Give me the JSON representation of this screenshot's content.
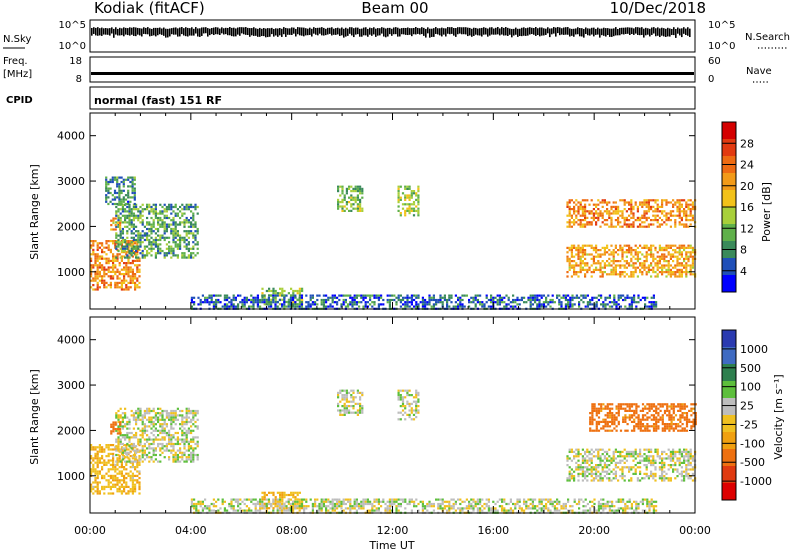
{
  "header": {
    "station": "Kodiak (fitACF)",
    "beam": "Beam 00",
    "date": "10/Dec/2018"
  },
  "noise_panel": {
    "left_label": "N.Sky",
    "right_label": "N.Search",
    "left_ticks": [
      "10^5",
      "10^0"
    ],
    "right_ticks": [
      "10^5",
      "10^0"
    ]
  },
  "freq_panel": {
    "left_label_1": "Freq.",
    "left_label_2": "[MHz]",
    "right_label": "Nave",
    "left_ticks": [
      "18",
      "8"
    ],
    "right_ticks": [
      "60",
      "0"
    ]
  },
  "cpid_panel": {
    "label": "CPID",
    "text": "normal (fast) 151 RF"
  },
  "colors": {
    "scale": [
      "#0000ff",
      "#1f4fb8",
      "#3a8a5a",
      "#5fb04a",
      "#a8cf3a",
      "#f2c21a",
      "#f29a18",
      "#ee6b12",
      "#e23a10",
      "#d40000"
    ],
    "velocity": [
      "#2a3ab0",
      "#3f6bc2",
      "#2e7f4e",
      "#5dbf3c",
      "#bdbdbd",
      "#f0c020",
      "#f0a010",
      "#ee7010",
      "#e03a10",
      "#dd0000"
    ]
  },
  "chart_data": [
    {
      "type": "heatmap",
      "title": "",
      "xlabel": "Time UT",
      "ylabel": "Slant Range [km]",
      "x_ticks": [
        "00:00",
        "04:00",
        "08:00",
        "12:00",
        "16:00",
        "20:00",
        "00:00"
      ],
      "y_ticks": [
        "1000",
        "2000",
        "3000",
        "4000"
      ],
      "y_range": [
        180,
        4500
      ],
      "colorbar_label": "Power [dB]",
      "colorbar_ticks": [
        "4",
        "8",
        "12",
        "16",
        "20",
        "24",
        "28"
      ],
      "colorbar_range": [
        0,
        32
      ],
      "echo_regions": [
        {
          "t_start": 0.0,
          "t_end": 2.0,
          "r_start": 600,
          "r_end": 1700,
          "power": 22
        },
        {
          "t_start": 1.0,
          "t_end": 4.3,
          "r_start": 1300,
          "r_end": 2500,
          "power": 10
        },
        {
          "t_start": 0.6,
          "t_end": 1.8,
          "r_start": 2500,
          "r_end": 3100,
          "power": 8
        },
        {
          "t_start": 0.8,
          "t_end": 1.2,
          "r_start": 1950,
          "r_end": 2200,
          "power": 20
        },
        {
          "t_start": 6.8,
          "t_end": 8.4,
          "r_start": 300,
          "r_end": 650,
          "power": 12
        },
        {
          "t_start": 9.8,
          "t_end": 10.8,
          "r_start": 2350,
          "r_end": 2900,
          "power": 12
        },
        {
          "t_start": 12.2,
          "t_end": 13.0,
          "r_start": 2250,
          "r_end": 2900,
          "power": 14
        },
        {
          "t_start": 4.0,
          "t_end": 22.5,
          "r_start": 180,
          "r_end": 500,
          "power": 6
        },
        {
          "t_start": 18.9,
          "t_end": 24.0,
          "r_start": 2000,
          "r_end": 2600,
          "power": 22
        },
        {
          "t_start": 18.9,
          "t_end": 24.0,
          "r_start": 900,
          "r_end": 1600,
          "power": 20
        }
      ]
    },
    {
      "type": "heatmap",
      "title": "",
      "xlabel": "Time UT",
      "ylabel": "Slant Range [km]",
      "x_ticks": [
        "00:00",
        "04:00",
        "08:00",
        "12:00",
        "16:00",
        "20:00",
        "00:00"
      ],
      "y_ticks": [
        "1000",
        "2000",
        "3000",
        "4000"
      ],
      "y_range": [
        180,
        4500
      ],
      "colorbar_label": "Velocity [m s⁻¹]",
      "colorbar_ticks": [
        "1000",
        "500",
        "100",
        "25",
        "-25",
        "-100",
        "-500",
        "-1000"
      ],
      "echo_regions": [
        {
          "t_start": 0.0,
          "t_end": 2.0,
          "r_start": 600,
          "r_end": 1700,
          "velocity": -80
        },
        {
          "t_start": 1.0,
          "t_end": 4.3,
          "r_start": 1300,
          "r_end": 2500,
          "velocity": 0
        },
        {
          "t_start": 0.8,
          "t_end": 1.2,
          "r_start": 1950,
          "r_end": 2200,
          "velocity": -300
        },
        {
          "t_start": 6.8,
          "t_end": 8.4,
          "r_start": 300,
          "r_end": 650,
          "velocity": -90
        },
        {
          "t_start": 9.8,
          "t_end": 10.8,
          "r_start": 2350,
          "r_end": 2900,
          "velocity": 0
        },
        {
          "t_start": 12.2,
          "t_end": 13.0,
          "r_start": 2250,
          "r_end": 2900,
          "velocity": 0
        },
        {
          "t_start": 4.0,
          "t_end": 22.5,
          "r_start": 180,
          "r_end": 500,
          "velocity": 0
        },
        {
          "t_start": 19.8,
          "t_end": 24.0,
          "r_start": 2000,
          "r_end": 2600,
          "velocity": -300
        },
        {
          "t_start": 18.9,
          "t_end": 24.0,
          "r_start": 900,
          "r_end": 1600,
          "velocity": 0
        }
      ]
    }
  ]
}
